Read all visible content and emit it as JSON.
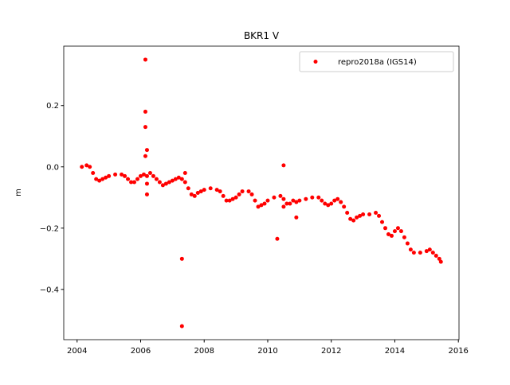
{
  "chart_data": {
    "type": "scatter",
    "title": "BKR1 V",
    "y_label": "m",
    "x": [
      2004.15,
      2004.3,
      2004.4,
      2004.5,
      2004.6,
      2004.7,
      2004.8,
      2004.9,
      2005.0,
      2005.2,
      2005.4,
      2005.5,
      2005.6,
      2005.7,
      2005.8,
      2005.9,
      2006.0,
      2006.1,
      2006.2,
      2006.3,
      2006.4,
      2006.5,
      2006.6,
      2006.7,
      2006.8,
      2006.9,
      2007.0,
      2007.1,
      2007.2,
      2007.3,
      2007.4,
      2007.5,
      2007.6,
      2007.7,
      2007.8,
      2007.9,
      2008.0,
      2008.2,
      2008.4,
      2008.5,
      2008.6,
      2008.7,
      2008.8,
      2008.9,
      2009.0,
      2009.1,
      2009.2,
      2009.4,
      2009.5,
      2009.6,
      2009.7,
      2009.8,
      2009.9,
      2010.0,
      2010.2,
      2010.4,
      2010.5,
      2010.6,
      2010.7,
      2010.8,
      2010.9,
      2011.0,
      2011.2,
      2011.4,
      2011.6,
      2011.7,
      2011.8,
      2011.9,
      2012.0,
      2012.1,
      2012.2,
      2012.3,
      2012.4,
      2012.5,
      2012.6,
      2012.7,
      2012.8,
      2012.9,
      2013.0,
      2013.2,
      2013.4,
      2013.5,
      2013.6,
      2013.7,
      2013.8,
      2013.9,
      2014.0,
      2014.1,
      2014.2,
      2014.3,
      2014.4,
      2014.5,
      2014.6,
      2014.8,
      2015.0,
      2015.1,
      2015.2,
      2015.3,
      2015.4,
      2015.45,
      2006.15,
      2006.15,
      2006.15,
      2006.15,
      2006.2,
      2006.2,
      2006.2,
      2007.3,
      2007.3,
      2007.4,
      2010.5,
      2010.5,
      2010.3,
      2010.9
    ],
    "series": [
      {
        "name": "repro2018a (IGS14)",
        "color": "#ff0000",
        "values": [
          0.0,
          0.005,
          0.0,
          -0.02,
          -0.04,
          -0.045,
          -0.04,
          -0.035,
          -0.03,
          -0.025,
          -0.025,
          -0.03,
          -0.04,
          -0.05,
          -0.05,
          -0.04,
          -0.03,
          -0.025,
          -0.03,
          -0.02,
          -0.03,
          -0.04,
          -0.05,
          -0.06,
          -0.055,
          -0.05,
          -0.045,
          -0.04,
          -0.035,
          -0.04,
          -0.05,
          -0.07,
          -0.09,
          -0.095,
          -0.085,
          -0.08,
          -0.075,
          -0.07,
          -0.075,
          -0.08,
          -0.095,
          -0.11,
          -0.11,
          -0.105,
          -0.1,
          -0.09,
          -0.08,
          -0.08,
          -0.09,
          -0.11,
          -0.13,
          -0.125,
          -0.12,
          -0.11,
          -0.1,
          -0.095,
          -0.105,
          -0.12,
          -0.12,
          -0.11,
          -0.115,
          -0.11,
          -0.105,
          -0.1,
          -0.1,
          -0.11,
          -0.12,
          -0.125,
          -0.12,
          -0.11,
          -0.105,
          -0.115,
          -0.13,
          -0.15,
          -0.17,
          -0.175,
          -0.165,
          -0.16,
          -0.155,
          -0.155,
          -0.15,
          -0.16,
          -0.18,
          -0.2,
          -0.22,
          -0.225,
          -0.21,
          -0.2,
          -0.21,
          -0.23,
          -0.25,
          -0.27,
          -0.28,
          -0.28,
          -0.275,
          -0.27,
          -0.28,
          -0.29,
          -0.3,
          -0.31,
          0.35,
          0.18,
          0.13,
          0.035,
          0.055,
          -0.09,
          -0.055,
          -0.3,
          -0.52,
          -0.02,
          0.005,
          -0.13,
          -0.235,
          -0.165
        ]
      }
    ],
    "xlim": [
      2003.58,
      2016.02
    ],
    "ylim": [
      -0.564,
      0.394
    ],
    "xticks": [
      2004,
      2006,
      2008,
      2010,
      2012,
      2014,
      2016
    ],
    "yticks": [
      {
        "value": -0.4,
        "label": "−0.4"
      },
      {
        "value": -0.2,
        "label": "−0.2"
      },
      {
        "value": 0.0,
        "label": "0.0"
      },
      0.2
    ],
    "legend": "upper right",
    "grid": false
  }
}
